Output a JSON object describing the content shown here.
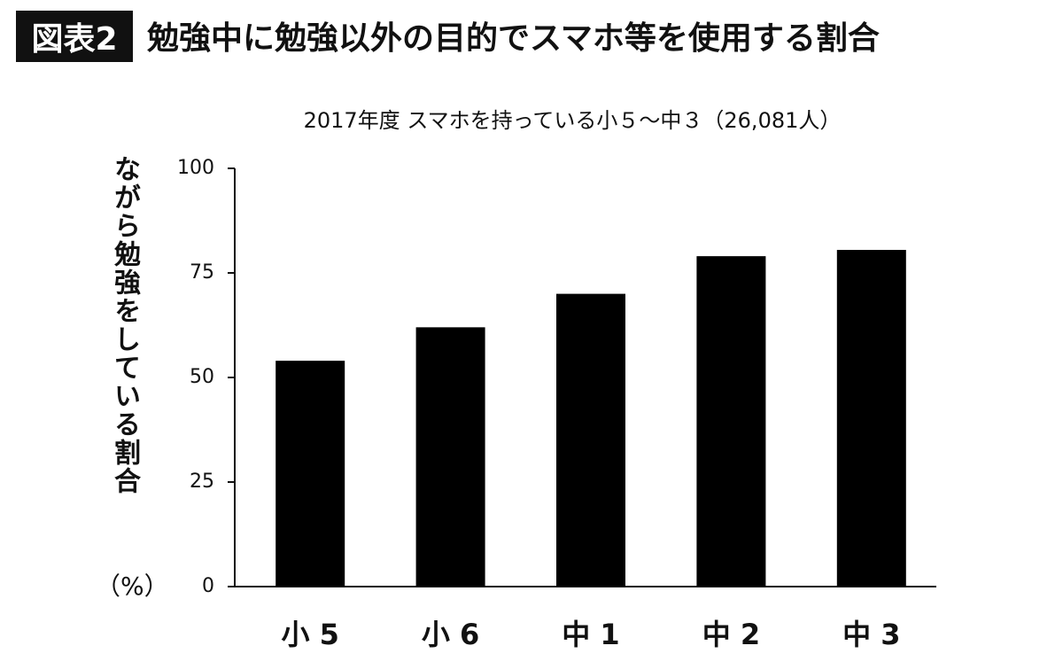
{
  "chart_data": {
    "type": "bar",
    "badge": "図表2",
    "title": "勉強中に勉強以外の目的でスマホ等を使用する割合",
    "subtitle": "2017年度 スマホを持っている小５～中３（26,081人）",
    "y_label": "ながら勉強をしている割合",
    "y_unit": "（%）",
    "categories": [
      "小 5",
      "小 6",
      "中 1",
      "中 2",
      "中 3"
    ],
    "values": [
      54,
      62,
      70,
      79,
      80.5
    ],
    "color": "#000000",
    "ylim": [
      0,
      100
    ],
    "yticks": [
      0,
      25,
      50,
      75,
      100
    ],
    "grid": false
  }
}
